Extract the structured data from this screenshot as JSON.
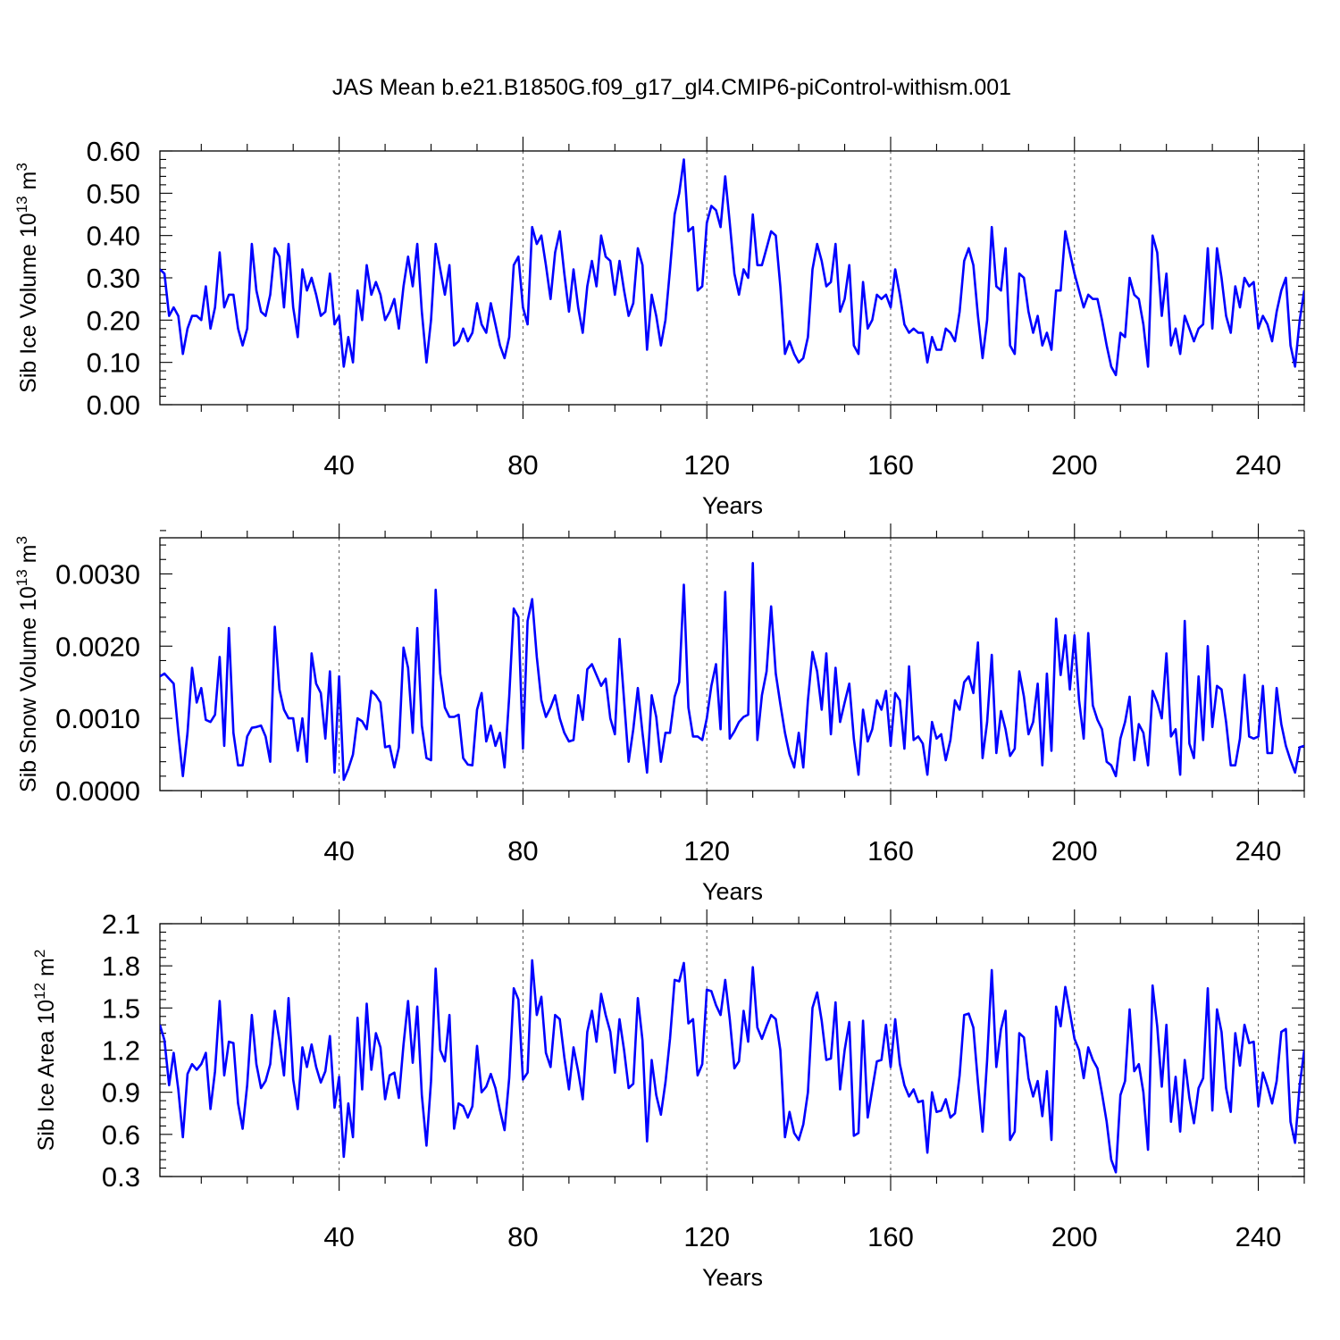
{
  "title": "JAS Mean b.e21.B1850G.f09_g17_gl4.CMIP6-piControl-withism.001",
  "colors": {
    "series": "#0000ff",
    "axes": "#000000",
    "grid": "#555555"
  },
  "chart_data": [
    {
      "type": "line",
      "ylabel": "Sib Ice Volume 10",
      "ylabel_exp": "13",
      "ylabel_unit": " m",
      "ylabel_unit_exp": "3",
      "xlabel": "Years",
      "xlim": [
        1,
        250
      ],
      "ylim": [
        0,
        0.6
      ],
      "y_ticks": [
        "0.00",
        "0.10",
        "0.20",
        "0.30",
        "0.40",
        "0.50",
        "0.60"
      ],
      "y_tick_values": [
        0,
        0.1,
        0.2,
        0.3,
        0.4,
        0.5,
        0.6
      ],
      "x_ticks": [
        "40",
        "80",
        "120",
        "160",
        "200",
        "240"
      ],
      "x_tick_values": [
        40,
        80,
        120,
        160,
        200,
        240
      ],
      "grid": "vertical dashed at major x ticks",
      "x_start": 1,
      "values": [
        0.32,
        0.31,
        0.21,
        0.23,
        0.21,
        0.12,
        0.18,
        0.21,
        0.21,
        0.2,
        0.28,
        0.18,
        0.23,
        0.36,
        0.23,
        0.26,
        0.26,
        0.18,
        0.14,
        0.18,
        0.38,
        0.27,
        0.22,
        0.21,
        0.26,
        0.37,
        0.35,
        0.23,
        0.38,
        0.23,
        0.16,
        0.32,
        0.27,
        0.3,
        0.26,
        0.21,
        0.22,
        0.31,
        0.19,
        0.21,
        0.09,
        0.16,
        0.1,
        0.27,
        0.2,
        0.33,
        0.26,
        0.29,
        0.26,
        0.2,
        0.22,
        0.25,
        0.18,
        0.28,
        0.35,
        0.28,
        0.38,
        0.22,
        0.1,
        0.2,
        0.38,
        0.32,
        0.26,
        0.33,
        0.14,
        0.15,
        0.18,
        0.15,
        0.17,
        0.24,
        0.19,
        0.17,
        0.24,
        0.19,
        0.14,
        0.11,
        0.16,
        0.33,
        0.35,
        0.23,
        0.19,
        0.42,
        0.38,
        0.4,
        0.33,
        0.25,
        0.36,
        0.41,
        0.31,
        0.22,
        0.32,
        0.23,
        0.17,
        0.28,
        0.34,
        0.28,
        0.4,
        0.35,
        0.34,
        0.26,
        0.34,
        0.27,
        0.21,
        0.24,
        0.37,
        0.33,
        0.13,
        0.26,
        0.21,
        0.14,
        0.2,
        0.32,
        0.45,
        0.5,
        0.58,
        0.41,
        0.42,
        0.27,
        0.28,
        0.43,
        0.47,
        0.46,
        0.42,
        0.54,
        0.43,
        0.31,
        0.26,
        0.32,
        0.3,
        0.45,
        0.33,
        0.33,
        0.37,
        0.41,
        0.4,
        0.28,
        0.12,
        0.15,
        0.12,
        0.1,
        0.11,
        0.16,
        0.32,
        0.38,
        0.34,
        0.28,
        0.29,
        0.38,
        0.22,
        0.25,
        0.33,
        0.14,
        0.12,
        0.29,
        0.18,
        0.2,
        0.26,
        0.25,
        0.26,
        0.23,
        0.32,
        0.26,
        0.19,
        0.17,
        0.18,
        0.17,
        0.17,
        0.1,
        0.16,
        0.13,
        0.13,
        0.18,
        0.17,
        0.15,
        0.22,
        0.34,
        0.37,
        0.33,
        0.21,
        0.11,
        0.2,
        0.42,
        0.28,
        0.27,
        0.37,
        0.14,
        0.12,
        0.31,
        0.3,
        0.22,
        0.17,
        0.21,
        0.14,
        0.17,
        0.13,
        0.27,
        0.27,
        0.41,
        0.36,
        0.31,
        0.27,
        0.23,
        0.26,
        0.25,
        0.25,
        0.2,
        0.14,
        0.09,
        0.07,
        0.17,
        0.16,
        0.3,
        0.26,
        0.25,
        0.19,
        0.09,
        0.4,
        0.36,
        0.21,
        0.31,
        0.14,
        0.18,
        0.12,
        0.21,
        0.18,
        0.15,
        0.18,
        0.19,
        0.37,
        0.18,
        0.37,
        0.3,
        0.21,
        0.17,
        0.28,
        0.23,
        0.3,
        0.28,
        0.29,
        0.18,
        0.21,
        0.19,
        0.15,
        0.22,
        0.27,
        0.3,
        0.14,
        0.09,
        0.2,
        0.27
      ]
    },
    {
      "type": "line",
      "ylabel": "Sib Snow Volume 10",
      "ylabel_exp": "13",
      "ylabel_unit": " m",
      "ylabel_unit_exp": "3",
      "xlabel": "Years",
      "xlim": [
        1,
        250
      ],
      "ylim": [
        0,
        0.0035
      ],
      "y_ticks": [
        "0.0000",
        "0.0010",
        "0.0020",
        "0.0030"
      ],
      "y_tick_values": [
        0,
        0.001,
        0.002,
        0.003
      ],
      "x_ticks": [
        "40",
        "80",
        "120",
        "160",
        "200",
        "240"
      ],
      "x_tick_values": [
        40,
        80,
        120,
        160,
        200,
        240
      ],
      "grid": "vertical dashed at major x ticks",
      "x_start": 1,
      "values": [
        0.00158,
        0.00162,
        0.00155,
        0.00148,
        0.0008,
        0.0002,
        0.0008,
        0.0017,
        0.00122,
        0.00142,
        0.00098,
        0.00095,
        0.00105,
        0.00185,
        0.00062,
        0.00225,
        0.0008,
        0.00035,
        0.00035,
        0.00075,
        0.00087,
        0.00088,
        0.0009,
        0.00075,
        0.0004,
        0.00227,
        0.0014,
        0.00112,
        0.001,
        0.001,
        0.00055,
        0.001,
        0.0004,
        0.0019,
        0.00148,
        0.00135,
        0.00072,
        0.00165,
        0.00025,
        0.00158,
        0.00015,
        0.0003,
        0.0005,
        0.001,
        0.00096,
        0.00085,
        0.00138,
        0.00132,
        0.00122,
        0.0006,
        0.00062,
        0.00032,
        0.0006,
        0.00198,
        0.0017,
        0.0008,
        0.00225,
        0.0009,
        0.00045,
        0.00042,
        0.00278,
        0.00162,
        0.00115,
        0.00102,
        0.00102,
        0.00105,
        0.00045,
        0.00036,
        0.00035,
        0.00112,
        0.00135,
        0.00068,
        0.0009,
        0.00062,
        0.0008,
        0.00032,
        0.0013,
        0.00252,
        0.0024,
        0.00058,
        0.00235,
        0.00265,
        0.00185,
        0.00125,
        0.00102,
        0.00115,
        0.00132,
        0.001,
        0.0008,
        0.00068,
        0.0007,
        0.00132,
        0.00098,
        0.00168,
        0.00175,
        0.0016,
        0.00145,
        0.00155,
        0.001,
        0.00078,
        0.0021,
        0.00125,
        0.0004,
        0.00085,
        0.00142,
        0.0008,
        0.00025,
        0.00132,
        0.00102,
        0.0004,
        0.0008,
        0.0008,
        0.0013,
        0.0015,
        0.00285,
        0.00115,
        0.00075,
        0.00075,
        0.0007,
        0.001,
        0.00145,
        0.00175,
        0.00085,
        0.00275,
        0.00072,
        0.00082,
        0.00095,
        0.00102,
        0.00105,
        0.00315,
        0.0007,
        0.00132,
        0.00165,
        0.00255,
        0.00162,
        0.0012,
        0.0008,
        0.0005,
        0.00032,
        0.0008,
        0.00032,
        0.00125,
        0.00192,
        0.00165,
        0.00112,
        0.0019,
        0.00078,
        0.0017,
        0.00095,
        0.00122,
        0.00148,
        0.00072,
        0.00022,
        0.00112,
        0.00068,
        0.00085,
        0.00125,
        0.00112,
        0.00138,
        0.00062,
        0.00135,
        0.00125,
        0.00058,
        0.00172,
        0.0007,
        0.00075,
        0.00065,
        0.00022,
        0.00095,
        0.00072,
        0.00078,
        0.00042,
        0.0007,
        0.00125,
        0.00112,
        0.0015,
        0.00158,
        0.00135,
        0.00205,
        0.00045,
        0.00095,
        0.00188,
        0.00052,
        0.0011,
        0.00085,
        0.00048,
        0.00058,
        0.00165,
        0.0013,
        0.00078,
        0.00095,
        0.00148,
        0.00035,
        0.00162,
        0.00055,
        0.00238,
        0.0016,
        0.00215,
        0.0014,
        0.00215,
        0.00125,
        0.00072,
        0.00218,
        0.00118,
        0.00098,
        0.00085,
        0.0004,
        0.00035,
        0.0002,
        0.00072,
        0.00095,
        0.0013,
        0.00042,
        0.00092,
        0.0008,
        0.00035,
        0.00138,
        0.00122,
        0.001,
        0.0019,
        0.00075,
        0.00085,
        0.00022,
        0.00235,
        0.00065,
        0.00045,
        0.00158,
        0.0007,
        0.002,
        0.00088,
        0.00145,
        0.0014,
        0.00095,
        0.00035,
        0.00035,
        0.00072,
        0.0016,
        0.00075,
        0.00072,
        0.00075,
        0.00145,
        0.00052,
        0.00052,
        0.00142,
        0.00092,
        0.00062,
        0.00042,
        0.00025,
        0.0006,
        0.00062
      ]
    },
    {
      "type": "line",
      "ylabel": "Sib Ice Area 10",
      "ylabel_exp": "12",
      "ylabel_unit": " m",
      "ylabel_unit_exp": "2",
      "xlabel": "Years",
      "xlim": [
        1,
        250
      ],
      "ylim": [
        0.3,
        2.1
      ],
      "y_ticks": [
        "0.3",
        "0.6",
        "0.9",
        "1.2",
        "1.5",
        "1.8",
        "2.1"
      ],
      "y_tick_values": [
        0.3,
        0.6,
        0.9,
        1.2,
        1.5,
        1.8,
        2.1
      ],
      "x_ticks": [
        "40",
        "80",
        "120",
        "160",
        "200",
        "240"
      ],
      "x_tick_values": [
        40,
        80,
        120,
        160,
        200,
        240
      ],
      "grid": "vertical dashed at major x ticks",
      "x_start": 1,
      "values": [
        1.38,
        1.27,
        0.95,
        1.18,
        0.92,
        0.58,
        1.03,
        1.1,
        1.06,
        1.1,
        1.18,
        0.78,
        1.05,
        1.55,
        1.02,
        1.26,
        1.25,
        0.82,
        0.64,
        0.95,
        1.45,
        1.1,
        0.93,
        0.98,
        1.1,
        1.48,
        1.27,
        1.02,
        1.57,
        0.99,
        0.78,
        1.22,
        1.08,
        1.24,
        1.08,
        0.97,
        1.05,
        1.3,
        0.79,
        1.01,
        0.44,
        0.82,
        0.58,
        1.43,
        0.92,
        1.53,
        1.06,
        1.32,
        1.22,
        0.85,
        1.02,
        1.04,
        0.86,
        1.24,
        1.55,
        1.11,
        1.51,
        0.88,
        0.52,
        0.98,
        1.78,
        1.2,
        1.12,
        1.45,
        0.64,
        0.82,
        0.8,
        0.72,
        0.8,
        1.23,
        0.9,
        0.94,
        1.03,
        0.93,
        0.77,
        0.63,
        1.0,
        1.64,
        1.56,
        0.99,
        1.04,
        1.84,
        1.45,
        1.58,
        1.18,
        1.08,
        1.45,
        1.42,
        1.15,
        0.92,
        1.22,
        1.05,
        0.85,
        1.33,
        1.48,
        1.26,
        1.6,
        1.45,
        1.33,
        1.04,
        1.42,
        1.2,
        0.93,
        0.96,
        1.57,
        1.27,
        0.55,
        1.13,
        0.88,
        0.74,
        0.97,
        1.28,
        1.7,
        1.69,
        1.82,
        1.39,
        1.42,
        1.02,
        1.1,
        1.63,
        1.62,
        1.52,
        1.45,
        1.7,
        1.42,
        1.07,
        1.12,
        1.48,
        1.26,
        1.79,
        1.36,
        1.28,
        1.37,
        1.45,
        1.42,
        1.2,
        0.58,
        0.76,
        0.61,
        0.56,
        0.67,
        0.9,
        1.5,
        1.61,
        1.41,
        1.13,
        1.14,
        1.54,
        0.92,
        1.2,
        1.4,
        0.59,
        0.61,
        1.41,
        0.72,
        0.92,
        1.12,
        1.13,
        1.38,
        1.08,
        1.42,
        1.1,
        0.95,
        0.87,
        0.92,
        0.83,
        0.84,
        0.47,
        0.9,
        0.76,
        0.77,
        0.85,
        0.72,
        0.75,
        1.02,
        1.45,
        1.46,
        1.36,
        0.97,
        0.62,
        1.13,
        1.77,
        1.08,
        1.35,
        1.48,
        0.56,
        0.62,
        1.32,
        1.29,
        1.0,
        0.87,
        0.98,
        0.73,
        1.05,
        0.56,
        1.51,
        1.37,
        1.65,
        1.47,
        1.28,
        1.2,
        1.0,
        1.22,
        1.13,
        1.07,
        0.89,
        0.69,
        0.42,
        0.33,
        0.88,
        0.98,
        1.49,
        1.05,
        1.1,
        0.9,
        0.49,
        1.66,
        1.37,
        0.94,
        1.38,
        0.69,
        1.01,
        0.62,
        1.13,
        0.86,
        0.68,
        0.93,
        1.0,
        1.64,
        0.77,
        1.49,
        1.33,
        0.93,
        0.76,
        1.32,
        1.09,
        1.38,
        1.25,
        1.26,
        0.8,
        1.04,
        0.94,
        0.82,
        0.98,
        1.33,
        1.35,
        0.69,
        0.54,
        0.95,
        1.2
      ]
    }
  ]
}
